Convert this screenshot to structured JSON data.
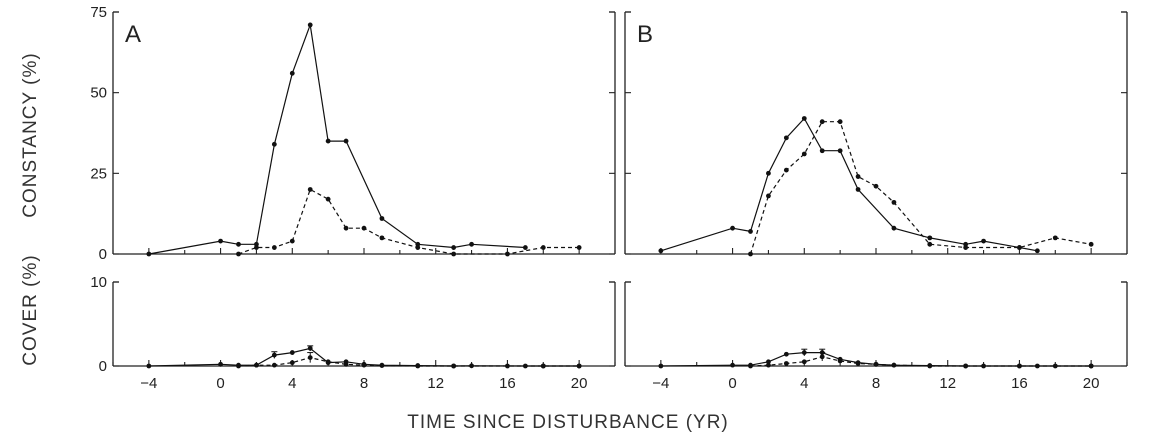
{
  "chart_data": {
    "type": "line",
    "xlabel": "TIME SINCE DISTURBANCE  (YR)",
    "xlim": [
      -6,
      22
    ],
    "xticks": [
      -4,
      0,
      4,
      8,
      12,
      16,
      20
    ],
    "rows": {
      "constancy": {
        "ylabel": "CONSTANCY (%)",
        "ylim": [
          0,
          75
        ],
        "yticks": [
          0,
          25,
          50,
          75
        ]
      },
      "cover": {
        "ylabel": "COVER (%)",
        "ylim": [
          0,
          10
        ],
        "yticks": [
          0,
          10
        ]
      }
    },
    "panels": [
      {
        "label": "A",
        "constancy": [
          {
            "style": "solid",
            "x": [
              -4,
              0,
              1,
              2,
              3,
              4,
              5,
              6,
              7,
              9,
              11,
              13,
              14,
              17
            ],
            "y": [
              0,
              4,
              3,
              3,
              34,
              56,
              71,
              35,
              35,
              11,
              3,
              2,
              3,
              2
            ]
          },
          {
            "style": "dashed",
            "x": [
              1,
              2,
              3,
              4,
              5,
              6,
              7,
              8,
              9,
              11,
              13,
              16,
              18,
              20
            ],
            "y": [
              0,
              2,
              2,
              4,
              20,
              17,
              8,
              8,
              5,
              2,
              0,
              0,
              2,
              2
            ]
          }
        ],
        "cover": [
          {
            "style": "solid",
            "x": [
              -4,
              0,
              1,
              2,
              3,
              4,
              5,
              6,
              7,
              8,
              9,
              11,
              13,
              14,
              17,
              18,
              20
            ],
            "y": [
              0,
              0.2,
              0.1,
              0.1,
              1.3,
              1.6,
              2.1,
              0.4,
              0.5,
              0.2,
              0.1,
              0.05,
              0,
              0.02,
              0,
              0,
              0
            ],
            "err": [
              0,
              0,
              0,
              0,
              0.4,
              0,
              0.3,
              0,
              0,
              0,
              0,
              0,
              0,
              0,
              0,
              0,
              0
            ]
          },
          {
            "style": "dashed",
            "x": [
              1,
              2,
              3,
              4,
              5,
              6,
              7,
              8,
              9,
              11,
              13,
              16,
              18,
              20
            ],
            "y": [
              0,
              0.1,
              0.1,
              0.4,
              1.0,
              0.5,
              0.2,
              0.1,
              0.05,
              0,
              0,
              0,
              0,
              0
            ],
            "err": [
              0,
              0,
              0,
              0,
              0.6,
              0,
              0,
              0,
              0,
              0,
              0,
              0,
              0,
              0
            ]
          }
        ]
      },
      {
        "label": "B",
        "constancy": [
          {
            "style": "solid",
            "x": [
              -4,
              0,
              1,
              2,
              3,
              4,
              5,
              6,
              7,
              9,
              11,
              13,
              14,
              16,
              17
            ],
            "y": [
              1,
              8,
              7,
              25,
              36,
              42,
              32,
              32,
              20,
              8,
              5,
              3,
              4,
              2,
              1
            ]
          },
          {
            "style": "dashed",
            "x": [
              1,
              2,
              3,
              4,
              5,
              6,
              7,
              8,
              9,
              11,
              13,
              16,
              18,
              20
            ],
            "y": [
              0,
              18,
              26,
              31,
              41,
              41,
              24,
              21,
              16,
              3,
              2,
              2,
              5,
              3
            ]
          }
        ],
        "cover": [
          {
            "style": "solid",
            "x": [
              -4,
              0,
              1,
              2,
              3,
              4,
              5,
              6,
              7,
              8,
              9,
              11,
              13,
              14,
              16,
              17,
              20
            ],
            "y": [
              0,
              0.1,
              0.1,
              0.5,
              1.4,
              1.6,
              1.6,
              0.8,
              0.4,
              0.2,
              0.1,
              0.05,
              0,
              0,
              0,
              0,
              0
            ],
            "err": [
              0,
              0,
              0,
              0,
              0,
              0.4,
              0.4,
              0,
              0,
              0,
              0,
              0,
              0,
              0,
              0,
              0,
              0
            ]
          },
          {
            "style": "dashed",
            "x": [
              1,
              2,
              3,
              4,
              5,
              6,
              7,
              8,
              9,
              11,
              13,
              16,
              18,
              20
            ],
            "y": [
              0,
              0.1,
              0.3,
              0.5,
              1.1,
              0.6,
              0.3,
              0.2,
              0.1,
              0,
              0,
              0,
              0,
              0
            ],
            "err": [
              0,
              0,
              0,
              0,
              0.5,
              0,
              0,
              0,
              0,
              0,
              0,
              0,
              0,
              0
            ]
          }
        ]
      }
    ]
  }
}
